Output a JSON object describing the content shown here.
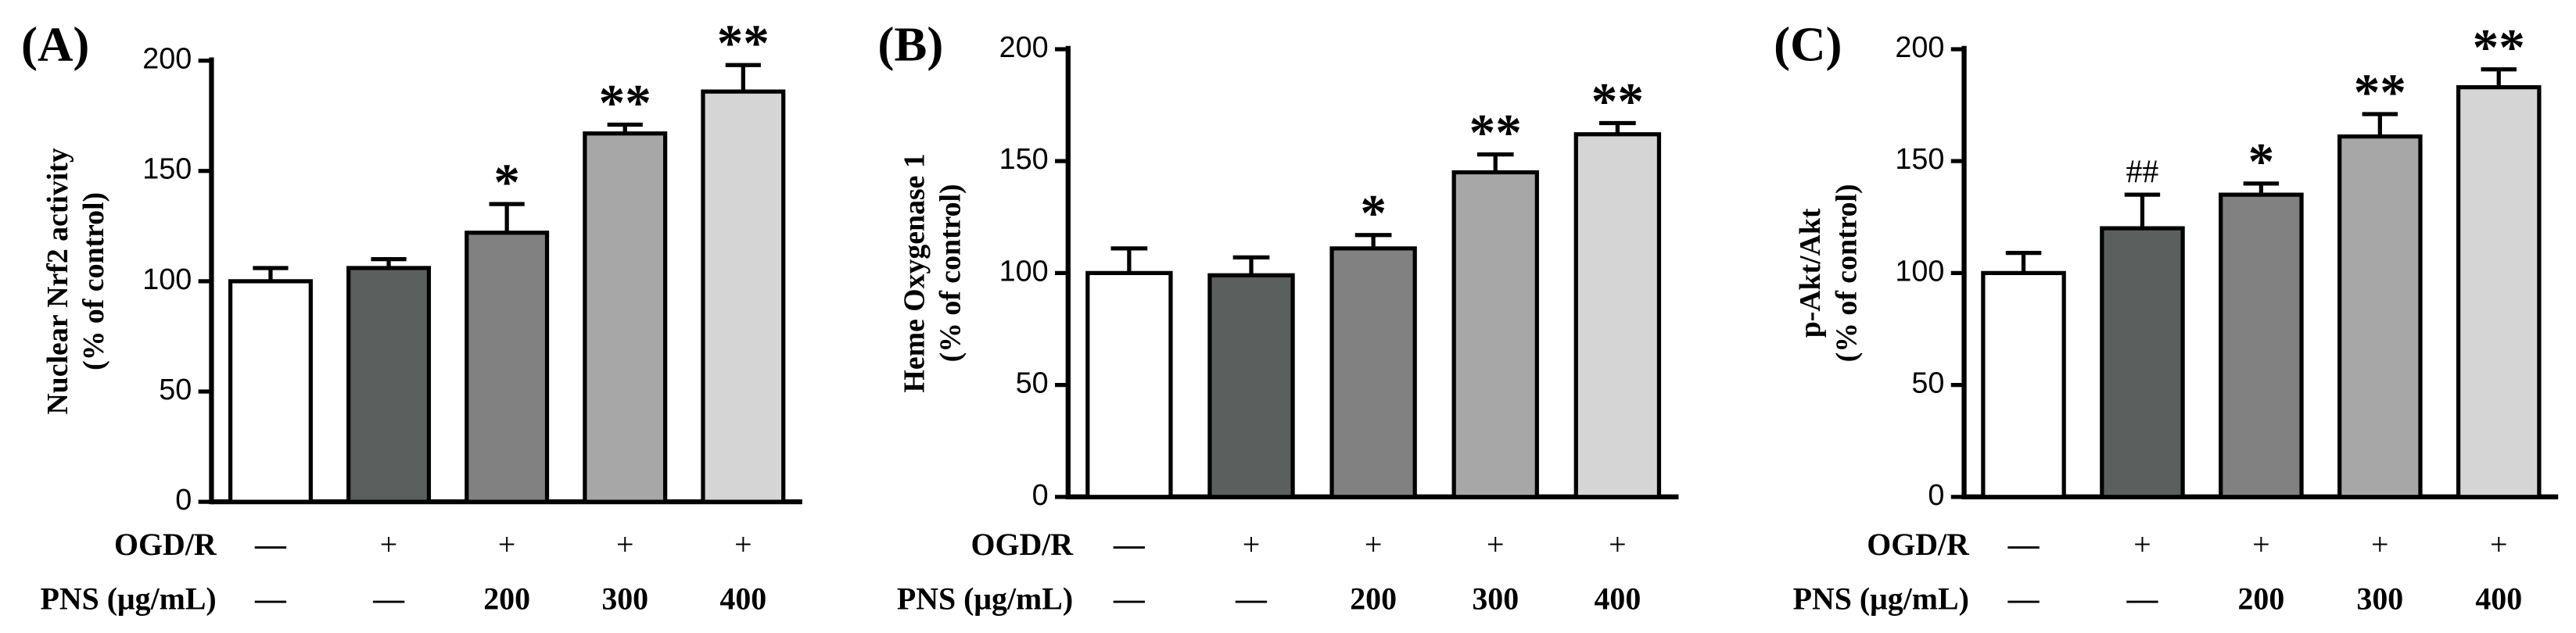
{
  "chart_data": [
    {
      "type": "bar",
      "panel": "(A)",
      "ylabel": [
        "Nuclear Nrf2 activity",
        "(% of control)"
      ],
      "values": [
        100,
        106,
        122,
        167,
        186
      ],
      "errors": [
        6,
        4,
        13,
        4,
        12
      ],
      "annotations": [
        null,
        null,
        "*",
        "**",
        "**"
      ],
      "colors": [
        "#ffffff",
        "#5b5f5d",
        "#818181",
        "#a7a7a7",
        "#d5d5d5"
      ],
      "ylim": [
        0,
        200
      ],
      "yticks": [
        0,
        50,
        100,
        150,
        200
      ],
      "conditions": [
        {
          "label": "OGD/R",
          "values": [
            "—",
            "+",
            "+",
            "+",
            "+"
          ]
        },
        {
          "label": "PNS (μg/mL)",
          "values": [
            "—",
            "—",
            "200",
            "300",
            "400"
          ]
        }
      ]
    },
    {
      "type": "bar",
      "panel": "(B)",
      "ylabel": [
        "Heme Oxygenase 1",
        "(% of control)"
      ],
      "values": [
        100,
        99,
        111,
        145,
        162
      ],
      "errors": [
        11,
        8,
        6,
        8,
        5
      ],
      "annotations": [
        null,
        null,
        "*",
        "**",
        "**"
      ],
      "colors": [
        "#ffffff",
        "#5b5f5d",
        "#818181",
        "#a7a7a7",
        "#d5d5d5"
      ],
      "ylim": [
        0,
        200
      ],
      "yticks": [
        0,
        50,
        100,
        150,
        200
      ],
      "conditions": [
        {
          "label": "OGD/R",
          "values": [
            "—",
            "+",
            "+",
            "+",
            "+"
          ]
        },
        {
          "label": "PNS (μg/mL)",
          "values": [
            "—",
            "—",
            "200",
            "300",
            "400"
          ]
        }
      ]
    },
    {
      "type": "bar",
      "panel": "(C)",
      "ylabel": [
        "p-Akt/Akt",
        "(% of control)"
      ],
      "values": [
        100,
        120,
        135,
        161,
        183
      ],
      "errors": [
        9,
        15,
        5,
        10,
        8
      ],
      "annotations": [
        null,
        "##",
        "*",
        "**",
        "**"
      ],
      "colors": [
        "#ffffff",
        "#5b5f5d",
        "#818181",
        "#a7a7a7",
        "#d5d5d5"
      ],
      "ylim": [
        0,
        200
      ],
      "yticks": [
        0,
        50,
        100,
        150,
        200
      ],
      "conditions": [
        {
          "label": "OGD/R",
          "values": [
            "—",
            "+",
            "+",
            "+",
            "+"
          ]
        },
        {
          "label": "PNS (μg/mL)",
          "values": [
            "—",
            "—",
            "200",
            "300",
            "400"
          ]
        }
      ]
    }
  ]
}
